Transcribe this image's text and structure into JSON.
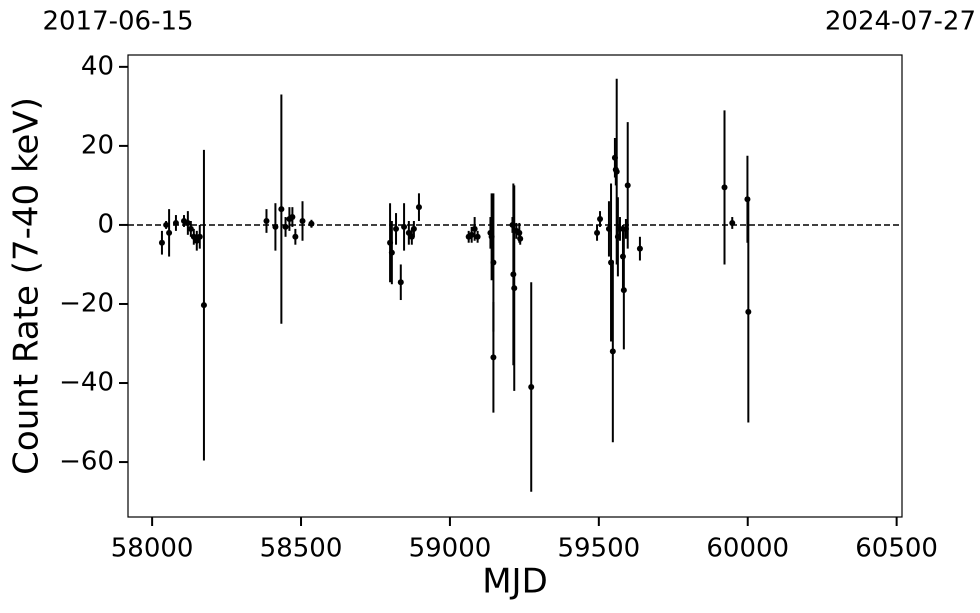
{
  "chart_data": {
    "type": "errorbar",
    "xlabel": "MJD",
    "ylabel": "Count Rate (7-40 keV)",
    "xlim": [
      57919,
      60518
    ],
    "ylim": [
      -73.9,
      43
    ],
    "xticks": [
      58000,
      58500,
      59000,
      59500,
      60000,
      60500
    ],
    "yticks": [
      {
        "value": -60,
        "label": "−60"
      },
      {
        "value": -40,
        "label": "−40"
      },
      {
        "value": -20,
        "label": "−20"
      },
      0,
      20,
      40
    ],
    "x2ticks": [
      {
        "value": 57919,
        "label": "2017-06-15"
      },
      {
        "value": 60518,
        "label": "2024-07-27"
      }
    ],
    "reference_line": 0,
    "series": [
      {
        "color": "#000000",
        "x": [
          58033,
          58047,
          58057,
          58080,
          58107,
          58120,
          58130,
          58140,
          58150,
          58160,
          58174,
          58384,
          58414,
          58434,
          58448,
          58461,
          58471,
          58481,
          58505,
          58535,
          58799,
          58805,
          58819,
          58835,
          58846,
          58862,
          58872,
          58879,
          58896,
          59063,
          59073,
          59083,
          59093,
          59136,
          59140,
          59146,
          59146,
          59210,
          59213,
          59216,
          59223,
          59233,
          59236,
          59273,
          59494,
          59504,
          59534,
          59541,
          59547,
          59554,
          59557,
          59560,
          59564,
          59571,
          59581,
          59584,
          59591,
          59597,
          59638,
          59922,
          59948,
          59999,
          60002
        ],
        "values": [
          -4.5,
          0,
          -2,
          0.5,
          1,
          0.5,
          -1,
          -3,
          -4,
          -3,
          -20.3,
          1,
          -0.5,
          4,
          -0.5,
          1.5,
          2,
          -3,
          1,
          0.3,
          -4.5,
          -7,
          -1,
          -14.5,
          -0.5,
          -2,
          -3,
          -1,
          4.5,
          -3,
          -2.5,
          -1,
          -3,
          -2,
          -3,
          -9.5,
          -33.5,
          0,
          -12.5,
          -16,
          -1.5,
          -2,
          -3.5,
          -41,
          -2,
          1.5,
          -1,
          -9.5,
          -32,
          17,
          14,
          13.5,
          -3,
          -1,
          -8,
          -16.5,
          -1,
          10,
          -6,
          9.5,
          0.5,
          6.5,
          -22
        ],
        "errors": [
          3,
          1,
          6,
          2,
          1.5,
          3,
          2,
          2,
          2.5,
          3,
          39.3,
          3,
          6,
          29,
          2.5,
          3,
          2.5,
          2,
          5,
          1,
          10,
          8,
          4,
          4.5,
          6,
          3,
          2,
          2,
          3.5,
          1.5,
          2,
          3,
          1.5,
          4,
          11,
          17.5,
          14,
          2,
          23,
          26,
          2,
          2.5,
          1.5,
          26.5,
          2,
          2,
          7,
          20,
          23,
          5,
          4,
          23.5,
          10,
          3,
          8,
          15,
          2.5,
          16,
          3,
          19.5,
          1.5,
          11,
          28
        ]
      }
    ]
  }
}
